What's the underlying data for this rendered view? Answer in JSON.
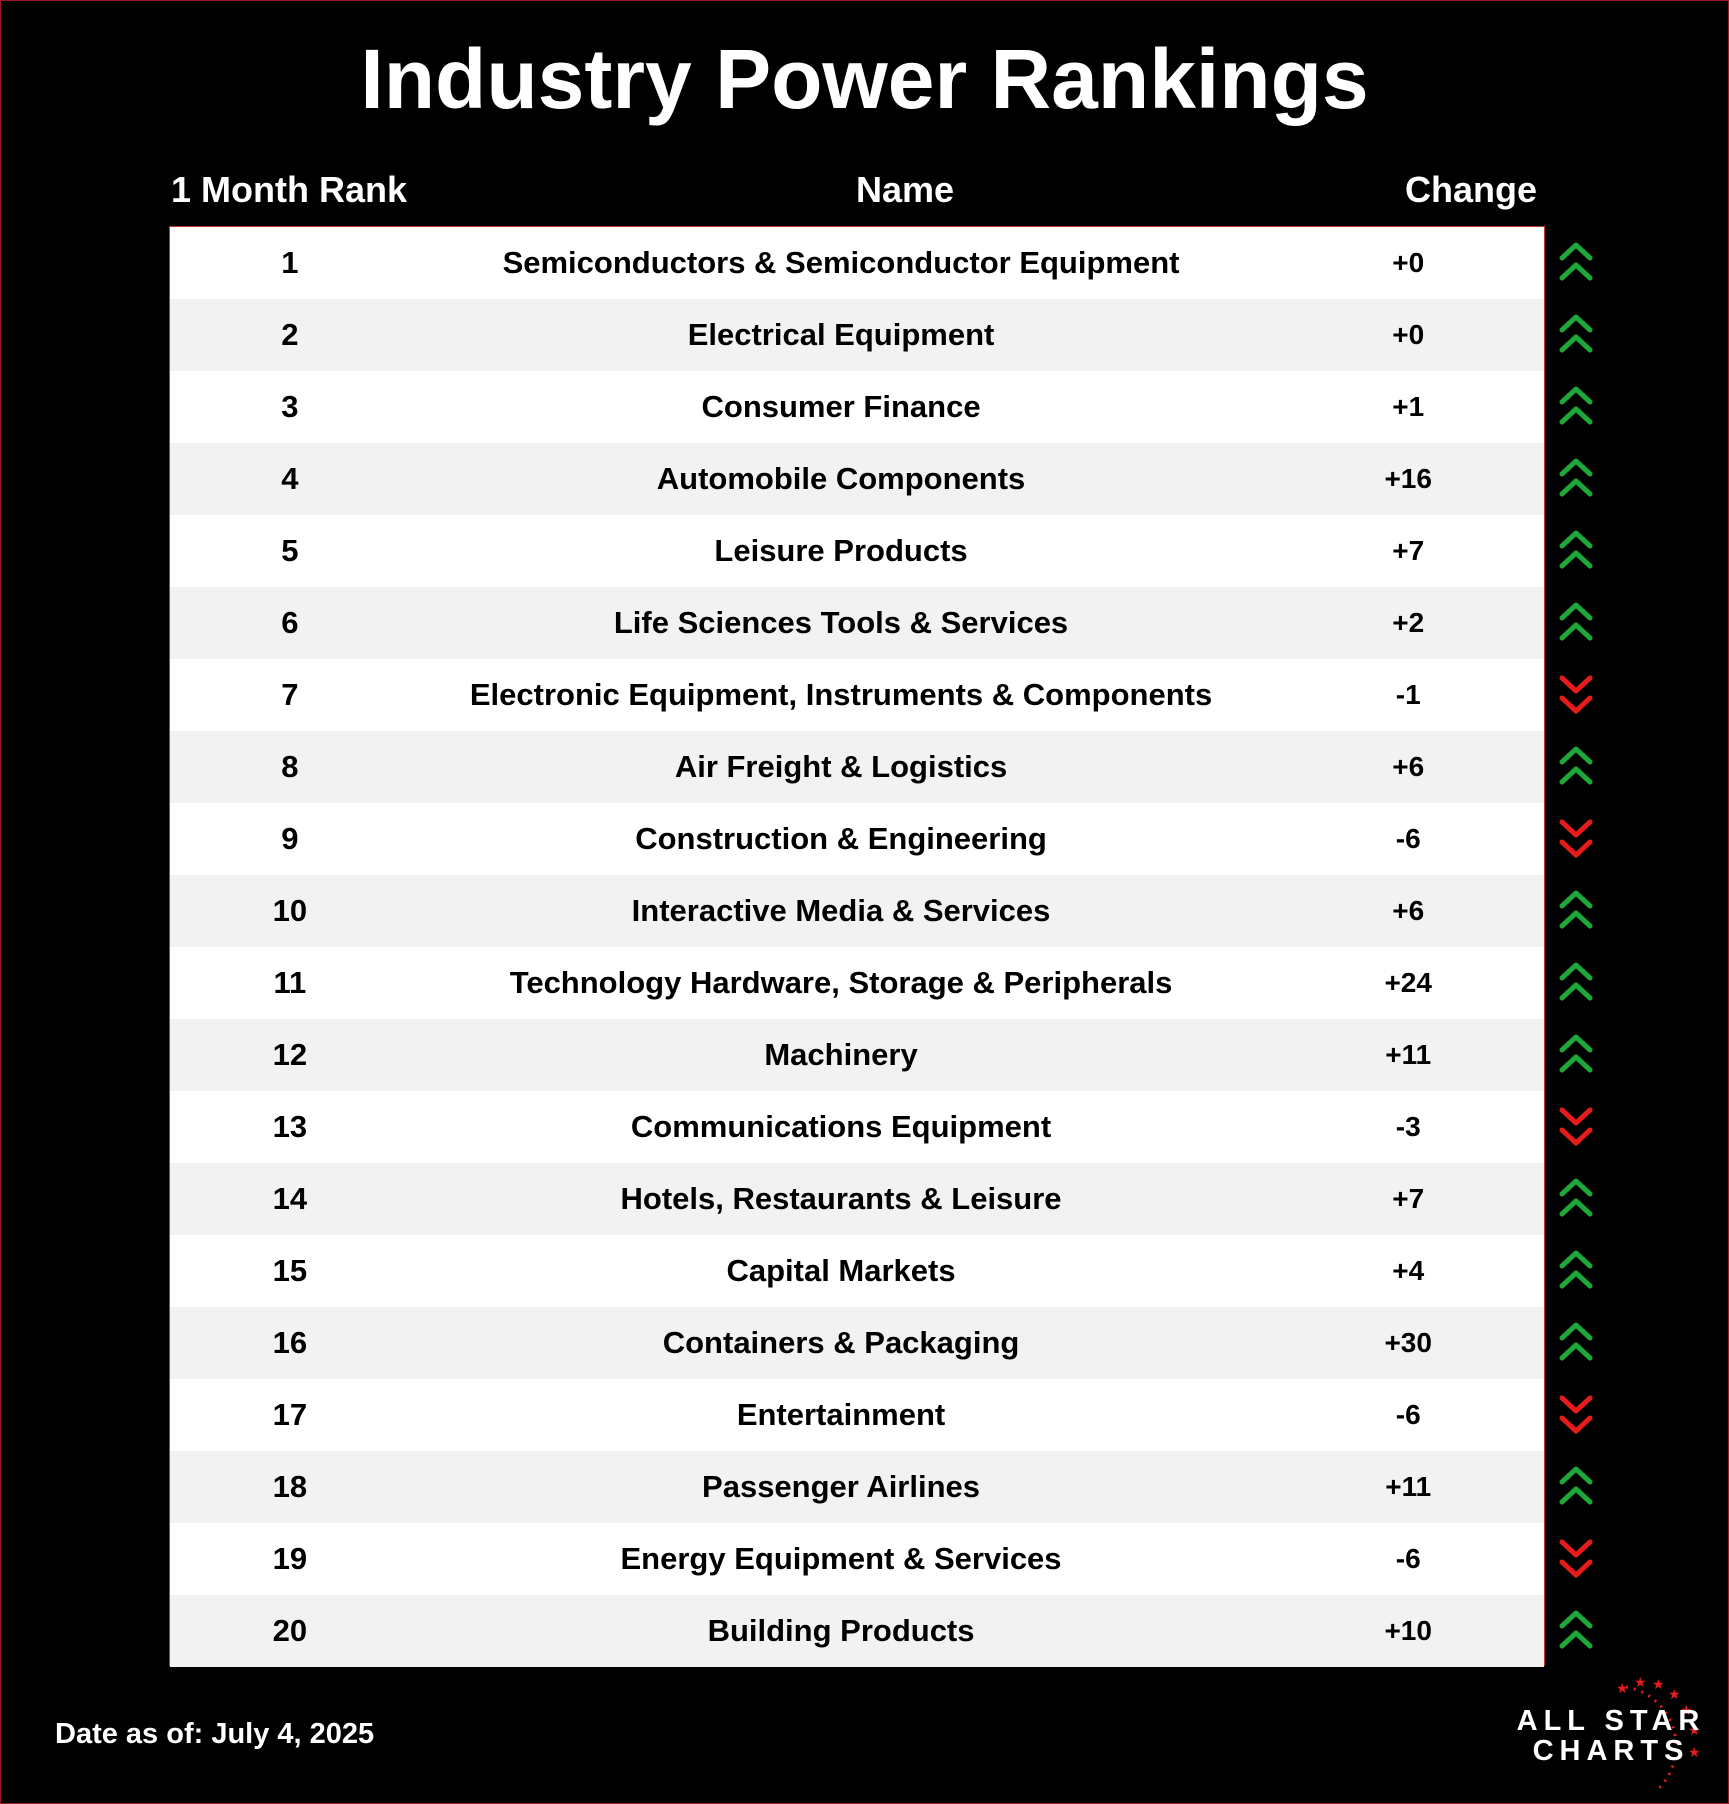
{
  "title": "Industry Power Rankings",
  "columns": {
    "rank": "1 Month Rank",
    "name": "Name",
    "change": "Change"
  },
  "footer": {
    "date": "Date as of: July 4, 2025"
  },
  "logo": {
    "line1": "ALL STAR",
    "line2": "CHARTS"
  },
  "colors": {
    "up": "#1fa83a",
    "down": "#e61c1c",
    "row_alt": "#f2f2f2",
    "border": "#c0392b"
  },
  "chart_data": {
    "type": "table",
    "title": "Industry Power Rankings",
    "columns": [
      "1 Month Rank",
      "Name",
      "Change"
    ],
    "rows": [
      {
        "rank": "1",
        "name": "Semiconductors & Semiconductor Equipment",
        "change": "+0",
        "direction": "up"
      },
      {
        "rank": "2",
        "name": "Electrical Equipment",
        "change": "+0",
        "direction": "up"
      },
      {
        "rank": "3",
        "name": "Consumer Finance",
        "change": "+1",
        "direction": "up"
      },
      {
        "rank": "4",
        "name": "Automobile Components",
        "change": "+16",
        "direction": "up"
      },
      {
        "rank": "5",
        "name": "Leisure Products",
        "change": "+7",
        "direction": "up"
      },
      {
        "rank": "6",
        "name": "Life Sciences Tools & Services",
        "change": "+2",
        "direction": "up"
      },
      {
        "rank": "7",
        "name": "Electronic Equipment, Instruments & Components",
        "change": "-1",
        "direction": "down"
      },
      {
        "rank": "8",
        "name": "Air Freight & Logistics",
        "change": "+6",
        "direction": "up"
      },
      {
        "rank": "9",
        "name": "Construction & Engineering",
        "change": "-6",
        "direction": "down"
      },
      {
        "rank": "10",
        "name": "Interactive Media & Services",
        "change": "+6",
        "direction": "up"
      },
      {
        "rank": "11",
        "name": "Technology Hardware, Storage & Peripherals",
        "change": "+24",
        "direction": "up"
      },
      {
        "rank": "12",
        "name": "Machinery",
        "change": "+11",
        "direction": "up"
      },
      {
        "rank": "13",
        "name": "Communications Equipment",
        "change": "-3",
        "direction": "down"
      },
      {
        "rank": "14",
        "name": "Hotels, Restaurants & Leisure",
        "change": "+7",
        "direction": "up"
      },
      {
        "rank": "15",
        "name": "Capital Markets",
        "change": "+4",
        "direction": "up"
      },
      {
        "rank": "16",
        "name": "Containers & Packaging",
        "change": "+30",
        "direction": "up"
      },
      {
        "rank": "17",
        "name": "Entertainment",
        "change": "-6",
        "direction": "down"
      },
      {
        "rank": "18",
        "name": "Passenger Airlines",
        "change": "+11",
        "direction": "up"
      },
      {
        "rank": "19",
        "name": "Energy Equipment & Services",
        "change": "-6",
        "direction": "down"
      },
      {
        "rank": "20",
        "name": "Building Products",
        "change": "+10",
        "direction": "up"
      }
    ]
  }
}
